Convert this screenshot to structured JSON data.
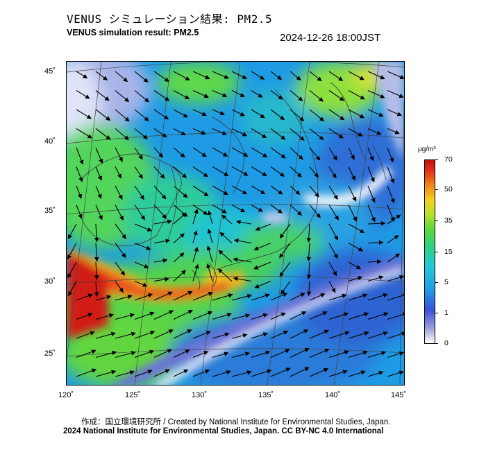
{
  "title_jp": "VENUS シミュレーション結果: PM2.5",
  "title_en": "VENUS simulation result: PM2.5",
  "datetime": "2024-12-26 18:00JST",
  "lon_labels": [
    "120˚",
    "125˚",
    "130˚",
    "135˚",
    "140˚",
    "145˚"
  ],
  "lat_labels": [
    "45˚",
    "40˚",
    "35˚",
    "30˚",
    "25˚"
  ],
  "colorbar": {
    "unit": "µg/m³",
    "ticks": [
      "70",
      "50",
      "35",
      "15",
      "5",
      "1",
      "0"
    ],
    "colors": [
      "#ffffff",
      "#3c50d8",
      "#1da0e6",
      "#2bd08a",
      "#b4e22c",
      "#f08a18",
      "#c40e0e"
    ]
  },
  "credit_line1": "作成：国立環境研究所 / Created by National Institute for Environmental Studies, Japan.",
  "credit_line2": "2024 National Institute for Environmental Studies, Japan. CC BY-NC 4.0 International"
}
